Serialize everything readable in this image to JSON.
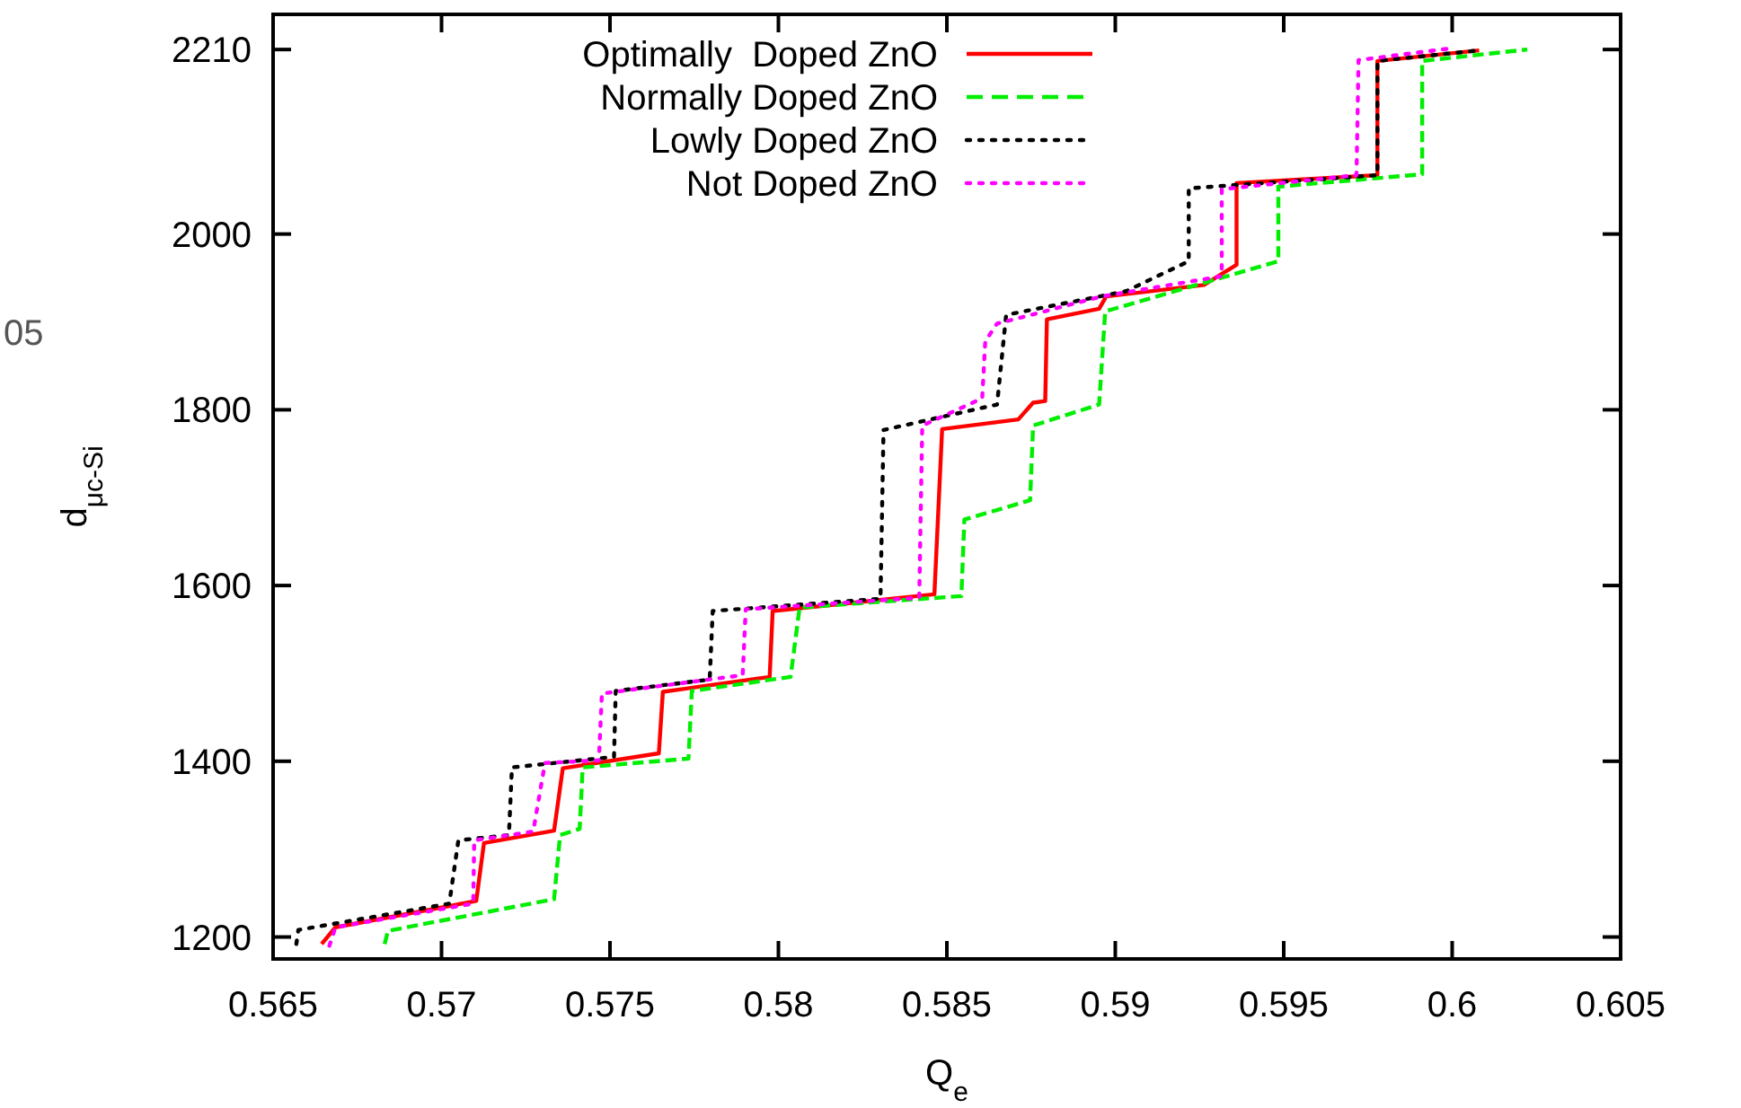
{
  "chart_data": {
    "type": "line",
    "xlabel": "Q$_{e}$",
    "ylabel": "d$_{μc-Si}$",
    "annotations": [
      "05"
    ],
    "xlim": [
      0.565,
      0.605
    ],
    "ylim": [
      1175,
      2250
    ],
    "xticks": [
      0.565,
      0.57,
      0.575,
      0.58,
      0.585,
      0.59,
      0.595,
      0.6,
      0.605
    ],
    "yticks": [
      1200,
      1400,
      1600,
      1800,
      2000,
      2210
    ],
    "grid": false,
    "legend": "top left",
    "marker": "none",
    "series": [
      {
        "name": "Optimally  Doped ZnO",
        "color": "#ff0000",
        "line_style": "solid",
        "x": [
          0.56644,
          0.56685,
          0.57103,
          0.57126,
          0.57334,
          0.5736,
          0.57645,
          0.57657,
          0.57974,
          0.57983,
          0.58463,
          0.58486,
          0.58712,
          0.58756,
          0.58792,
          0.58797,
          0.58952,
          0.58973,
          0.59263,
          0.5936,
          0.5936,
          0.59778,
          0.59778,
          0.6008
        ],
        "values": [
          1192,
          1211,
          1241,
          1307,
          1321,
          1392,
          1409,
          1479,
          1496,
          1571,
          1590,
          1778,
          1789,
          1808,
          1810,
          1903,
          1915,
          1929,
          1942,
          1965,
          2058,
          2067,
          2197,
          2209
        ]
      },
      {
        "name": "Normally Doped ZnO",
        "color": "#00ee00",
        "line_style": "dashed",
        "x": [
          0.56831,
          0.56841,
          0.57334,
          0.57352,
          0.5741,
          0.57419,
          0.57733,
          0.57743,
          0.58036,
          0.58063,
          0.58543,
          0.58552,
          0.58747,
          0.58756,
          0.58952,
          0.5897,
          0.59484,
          0.59484,
          0.59911,
          0.59911,
          0.60223
        ],
        "values": [
          1192,
          1207,
          1243,
          1316,
          1323,
          1393,
          1403,
          1480,
          1496,
          1575,
          1588,
          1675,
          1697,
          1782,
          1806,
          1912,
          1969,
          2054,
          2068,
          2197,
          2210
        ]
      },
      {
        "name": "Lowly Doped ZnO",
        "color": "#000000",
        "line_style": "dotted",
        "x": [
          0.56569,
          0.56575,
          0.57023,
          0.5705,
          0.572,
          0.57209,
          0.57512,
          0.57517,
          0.57796,
          0.57805,
          0.58303,
          0.58312,
          0.58649,
          0.58676,
          0.59032,
          0.59218,
          0.59218,
          0.59778,
          0.59778,
          0.6008
        ],
        "values": [
          1192,
          1208,
          1238,
          1310,
          1316,
          1393,
          1405,
          1480,
          1493,
          1571,
          1585,
          1777,
          1806,
          1908,
          1935,
          1969,
          2052,
          2067,
          2197,
          2209
        ]
      },
      {
        "name": "Not Doped ZnO",
        "color": "#ff00ff",
        "line_style": "dotted",
        "x": [
          0.56667,
          0.56685,
          0.57094,
          0.57097,
          0.57272,
          0.57307,
          0.57467,
          0.57476,
          0.57894,
          0.57903,
          0.58418,
          0.58427,
          0.58605,
          0.58614,
          0.58649,
          0.5896,
          0.59316,
          0.59316,
          0.59716,
          0.59722,
          0.59991
        ],
        "values": [
          1190,
          1211,
          1238,
          1310,
          1320,
          1398,
          1401,
          1477,
          1498,
          1573,
          1586,
          1782,
          1813,
          1878,
          1898,
          1929,
          1952,
          2051,
          2067,
          2198,
          2211
        ]
      }
    ]
  }
}
